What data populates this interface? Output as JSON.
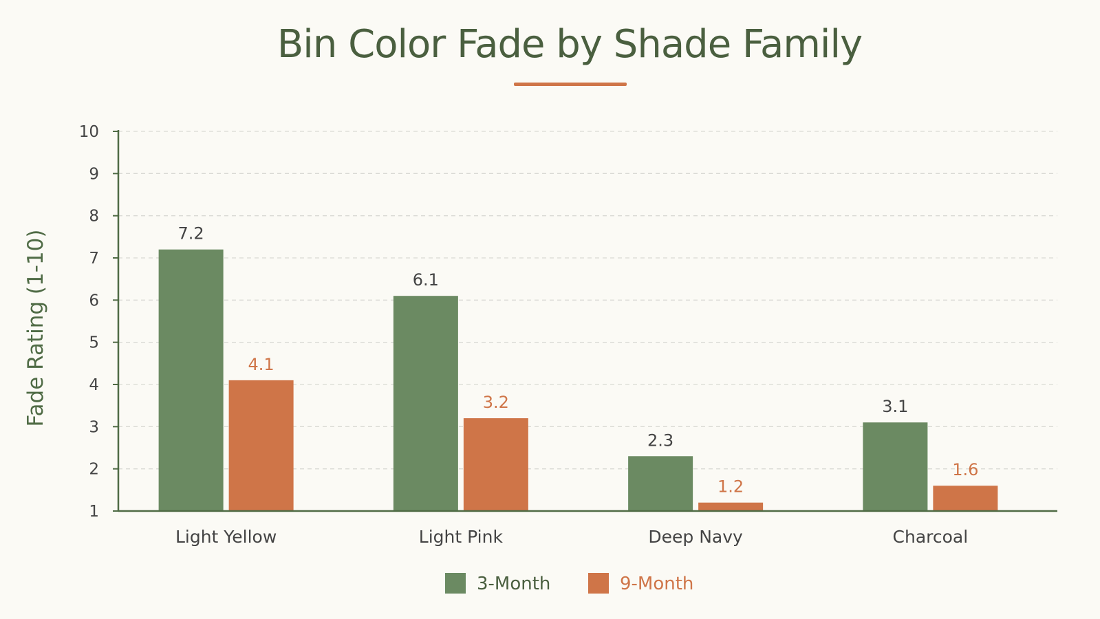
{
  "chart_data": {
    "type": "bar",
    "title": "Bin Color Fade by Shade Family",
    "xlabel": "",
    "ylabel": "Fade Rating (1-10)",
    "categories": [
      "Light Yellow",
      "Light Pink",
      "Deep Navy",
      "Charcoal"
    ],
    "series": [
      {
        "name": "3-Month",
        "values": [
          7.2,
          6.1,
          2.3,
          3.1
        ],
        "color": "#6b8a62"
      },
      {
        "name": "9-Month",
        "values": [
          4.1,
          3.2,
          1.2,
          1.6
        ],
        "color": "#cf7548"
      }
    ],
    "ylim": [
      1,
      10
    ],
    "yticks": [
      "1",
      "2",
      "3",
      "4",
      "5",
      "6",
      "7",
      "8",
      "9",
      "10"
    ],
    "grid": true,
    "legend_position": "bottom-center",
    "accent_color": "#cf7548",
    "axis_color": "#4f6b45",
    "title_color": "#4a5f3f"
  }
}
